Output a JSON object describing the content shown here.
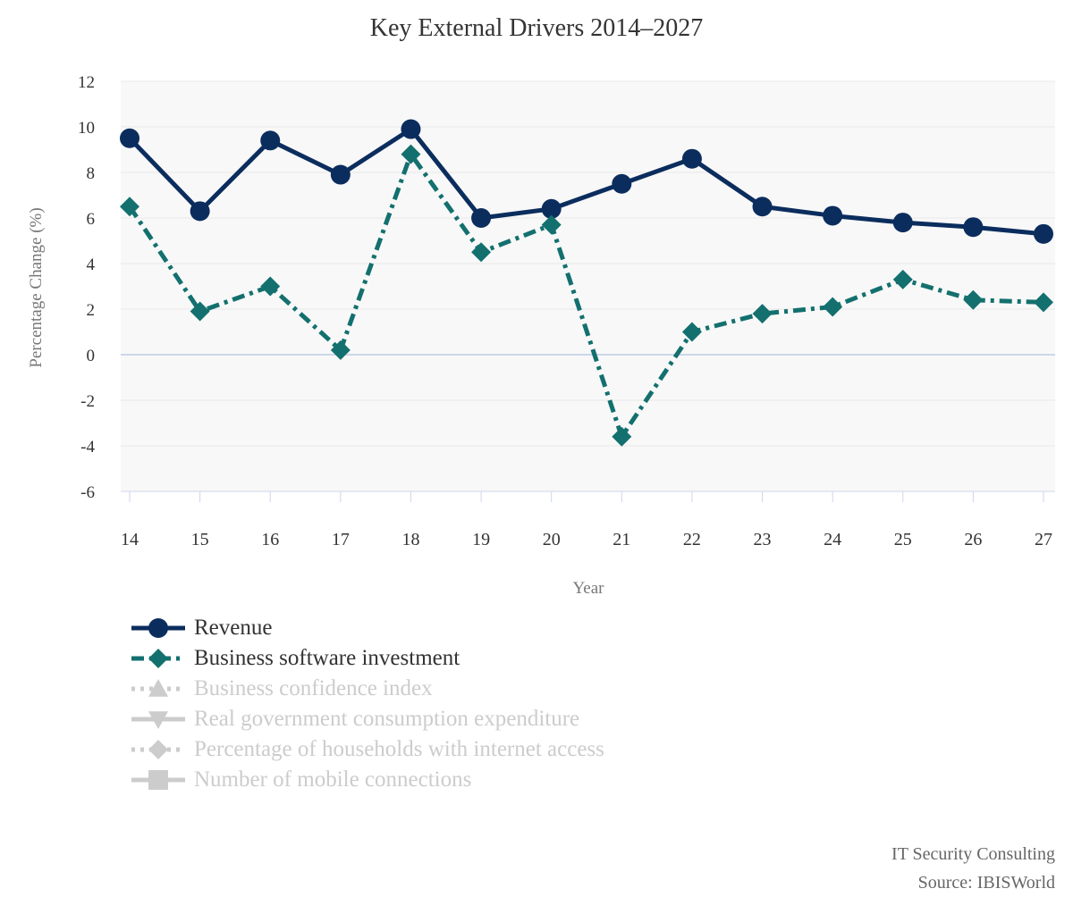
{
  "chart_data": {
    "type": "line",
    "title": "Key External Drivers 2014–2027",
    "xlabel": "Year",
    "ylabel": "Percentage Change (%)",
    "categories": [
      "14",
      "15",
      "16",
      "17",
      "18",
      "19",
      "20",
      "21",
      "22",
      "23",
      "24",
      "25",
      "26",
      "27"
    ],
    "ylim": [
      -6,
      12
    ],
    "yticks": [
      -6,
      -4,
      -2,
      0,
      2,
      4,
      6,
      8,
      10,
      12
    ],
    "grid": true,
    "legend_position": "bottom-left",
    "series": [
      {
        "name": "Revenue",
        "color": "#0b2d5e",
        "marker": "circle",
        "dash": "solid",
        "visible": true,
        "values": [
          9.5,
          6.3,
          9.4,
          7.9,
          9.9,
          6.0,
          6.4,
          7.5,
          8.6,
          6.5,
          6.1,
          5.8,
          5.6,
          5.3
        ]
      },
      {
        "name": "Business software investment",
        "color": "#13706e",
        "marker": "diamond",
        "dash": "dashdot",
        "visible": true,
        "values": [
          6.5,
          1.9,
          3.0,
          0.2,
          8.8,
          4.5,
          5.7,
          -3.6,
          1.0,
          1.8,
          2.1,
          3.3,
          2.4,
          2.3
        ]
      },
      {
        "name": "Business confidence index",
        "color": "#cccccc",
        "marker": "triangle",
        "dash": "dotted",
        "visible": false
      },
      {
        "name": "Real government consumption expenditure",
        "color": "#cccccc",
        "marker": "triangle-down",
        "dash": "solid",
        "visible": false
      },
      {
        "name": "Percentage of households with internet access",
        "color": "#cccccc",
        "marker": "diamond",
        "dash": "dotted",
        "visible": false
      },
      {
        "name": "Number of mobile connections",
        "color": "#cccccc",
        "marker": "square",
        "dash": "solid",
        "visible": false
      }
    ]
  },
  "credits": {
    "line1": "IT Security Consulting",
    "line2": "Source: IBISWorld"
  }
}
